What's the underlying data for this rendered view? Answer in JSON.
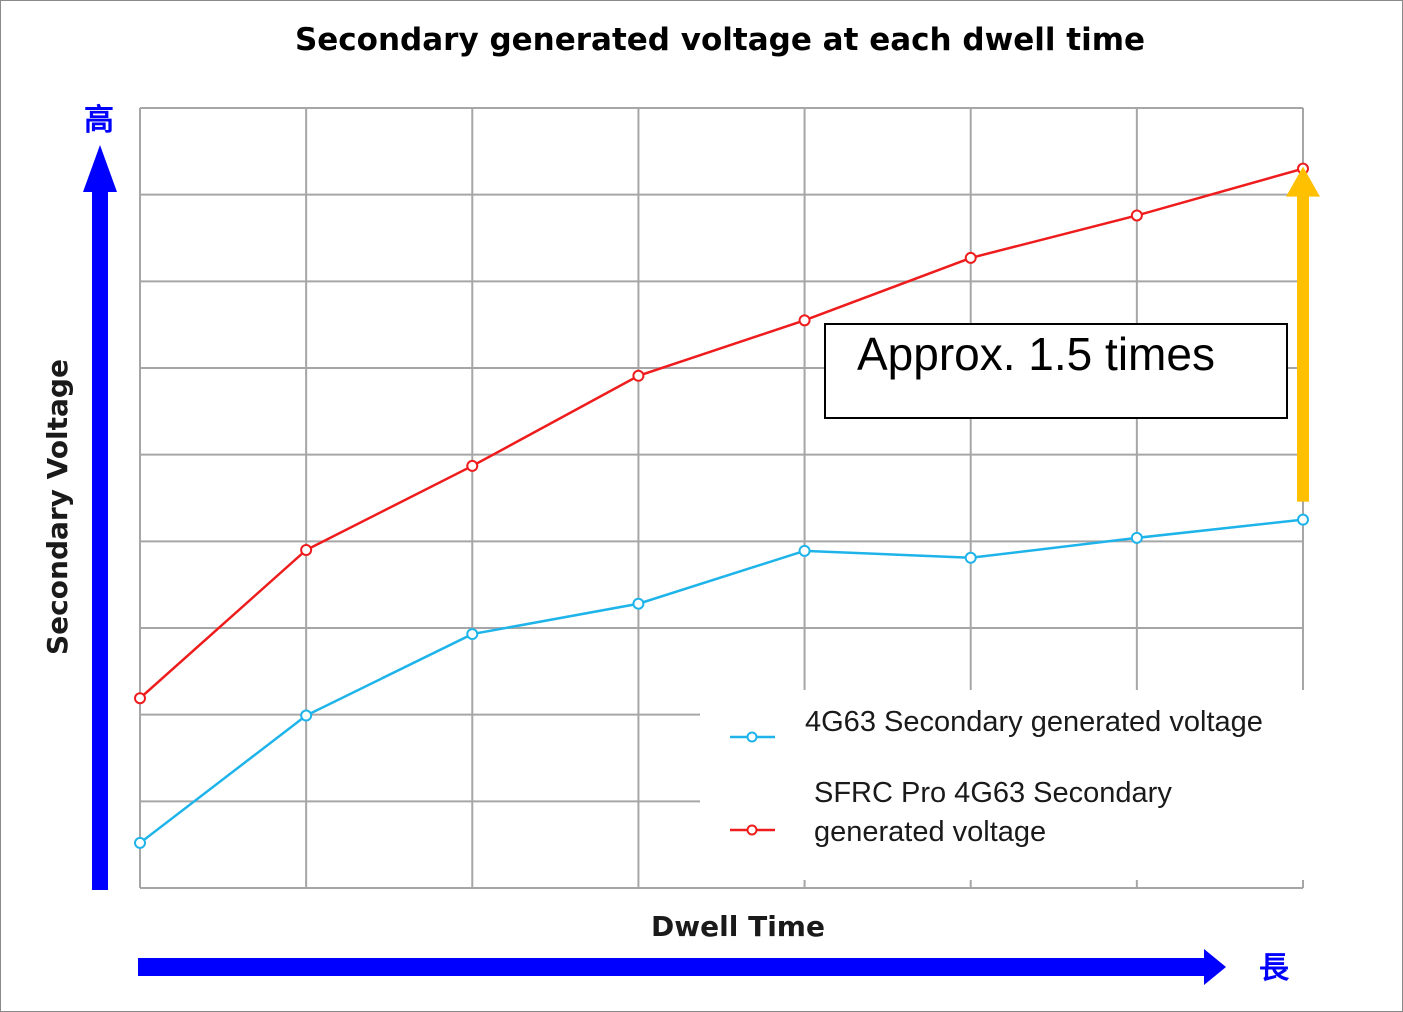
{
  "chart_data": {
    "type": "line",
    "title": "Secondary generated voltage at each dwell time",
    "xlabel": "Dwell Time",
    "ylabel": "Secondary Voltage",
    "y_axis_high_marker": "高",
    "x_axis_long_marker": "長",
    "x": [
      1,
      2,
      3,
      4,
      5,
      6,
      7,
      8
    ],
    "ylim": [
      0,
      9
    ],
    "grid": true,
    "legend_position": "bottom-right",
    "series": [
      {
        "name": "4G63 Secondary generated voltage",
        "color": "#1eb4ea",
        "values": [
          0.52,
          1.99,
          2.93,
          3.28,
          3.89,
          3.81,
          4.04,
          4.25
        ]
      },
      {
        "name": "SFRC Pro 4G63 Secondary generated voltage",
        "legend_lines": [
          "SFRC Pro 4G63 Secondary",
          "generated  voltage"
        ],
        "color": "#ee1c1c",
        "values": [
          2.19,
          3.9,
          4.87,
          5.91,
          6.55,
          7.27,
          7.76,
          8.3
        ]
      }
    ],
    "annotation": {
      "text": "Approx. 1.5 times",
      "arrow_color": "#ffc000",
      "from_value": 4.25,
      "to_value": 8.3
    }
  },
  "colors": {
    "axis_arrows": "#0000ff",
    "grid": "#a6a6a6"
  }
}
